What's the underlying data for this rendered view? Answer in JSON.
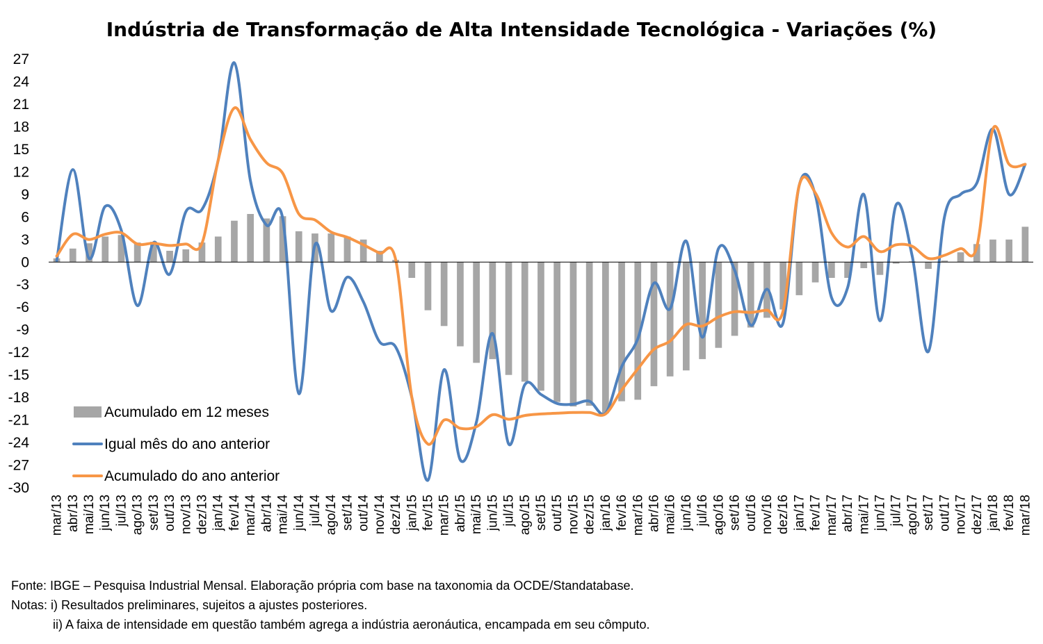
{
  "chart_data": {
    "type": "bar+line",
    "title": "Indústria de Transformação de Alta Intensidade Tecnológica - Variações (%)",
    "xlabel": "",
    "ylabel": "",
    "ylim": [
      -30,
      27
    ],
    "yticks": [
      27,
      24,
      21,
      18,
      15,
      12,
      9,
      6,
      3,
      0,
      -3,
      -6,
      -9,
      -12,
      -15,
      -18,
      -21,
      -24,
      -27,
      -30
    ],
    "legend_position": "bottom-left",
    "categories": [
      "mar/13",
      "abr/13",
      "mai/13",
      "jun/13",
      "jul/13",
      "ago/13",
      "set/13",
      "out/13",
      "nov/13",
      "dez/13",
      "jan/14",
      "fev/14",
      "mar/14",
      "abr/14",
      "mai/14",
      "jun/14",
      "jul/14",
      "ago/14",
      "set/14",
      "out/14",
      "nov/14",
      "dez/14",
      "jan/15",
      "fev/15",
      "mar/15",
      "abr/15",
      "mai/15",
      "jun/15",
      "jul/15",
      "ago/15",
      "set/15",
      "out/15",
      "nov/15",
      "dez/15",
      "jan/16",
      "fev/16",
      "mar/16",
      "abr/16",
      "mai/16",
      "jun/16",
      "jul/16",
      "ago/16",
      "set/16",
      "out/16",
      "nov/16",
      "dez/16",
      "jan/17",
      "fev/17",
      "mar/17",
      "abr/17",
      "mai/17",
      "jun/17",
      "jul/17",
      "ago/17",
      "set/17",
      "out/17",
      "nov/17",
      "dez/17",
      "jan/18",
      "fev/18",
      "mar/18"
    ],
    "series": [
      {
        "name": "Acumulado em 12 meses",
        "kind": "bar",
        "color": "#a6a6a6",
        "values": [
          0.5,
          1.8,
          2.5,
          3.4,
          3.6,
          2.6,
          2.7,
          1.5,
          1.7,
          2.6,
          3.4,
          5.5,
          6.4,
          5.8,
          6.1,
          4.1,
          3.8,
          3.8,
          3.4,
          3.0,
          1.5,
          0.3,
          -2.1,
          -6.4,
          -8.5,
          -11.2,
          -13.4,
          -12.9,
          -15.0,
          -15.9,
          -17.1,
          -18.6,
          -19.2,
          -19.1,
          -20.1,
          -18.5,
          -18.3,
          -16.5,
          -15.2,
          -14.4,
          -12.9,
          -11.4,
          -9.8,
          -8.7,
          -7.4,
          -6.3,
          -4.4,
          -2.7,
          -2.1,
          -2.1,
          -0.8,
          -1.7,
          -0.2,
          0.1,
          -0.9,
          0.2,
          1.3,
          2.4,
          3.0,
          3.0,
          4.7
        ]
      },
      {
        "name": "Igual mês do ano anterior",
        "kind": "line",
        "color": "#4f81bd",
        "values": [
          0.2,
          12.3,
          0.5,
          7.4,
          4.2,
          -5.8,
          2.6,
          -1.6,
          6.7,
          7.0,
          13.5,
          26.5,
          10.8,
          4.9,
          5.8,
          -17.5,
          2.3,
          -6.5,
          -2.0,
          -5.3,
          -10.6,
          -11.3,
          -18.0,
          -29.0,
          -14.3,
          -26.3,
          -21.3,
          -9.5,
          -24.2,
          -16.3,
          -17.6,
          -18.8,
          -18.9,
          -18.5,
          -20.1,
          -13.9,
          -10.2,
          -2.8,
          -6.2,
          2.8,
          -10.0,
          1.8,
          -1.1,
          -8.4,
          -3.6,
          -8.1,
          10.2,
          8.9,
          -4.7,
          -3.4,
          9.0,
          -7.8,
          7.6,
          0.8,
          -11.9,
          6.0,
          9.0,
          10.5,
          17.7,
          9.0,
          13.0
        ]
      },
      {
        "name": "Acumulado do ano anterior",
        "kind": "line",
        "color": "#f79646",
        "values": [
          0.8,
          3.7,
          3.0,
          3.7,
          3.9,
          2.4,
          2.5,
          2.2,
          2.4,
          2.5,
          13.5,
          20.5,
          16.3,
          13.2,
          11.8,
          6.4,
          5.6,
          4.0,
          3.3,
          2.3,
          1.2,
          0.3,
          -18.0,
          -24.2,
          -21.0,
          -22.1,
          -21.9,
          -20.3,
          -20.9,
          -20.4,
          -20.2,
          -20.1,
          -20.0,
          -20.0,
          -20.2,
          -17.0,
          -14.2,
          -11.6,
          -10.5,
          -8.3,
          -8.5,
          -7.3,
          -6.6,
          -6.7,
          -6.4,
          -6.5,
          10.2,
          9.2,
          3.9,
          2.0,
          3.4,
          1.4,
          2.3,
          2.1,
          0.5,
          0.9,
          1.8,
          2.0,
          17.7,
          13.0,
          13.0
        ]
      }
    ]
  },
  "notes": {
    "source": "Fonte: IBGE – Pesquisa Industrial Mensal. Elaboração própria com base na taxonomia da OCDE/Standatabase.",
    "note1": "Notas: i) Resultados preliminares, sujeitos a ajustes posteriores.",
    "note2": "ii) A faixa de intensidade em questão também agrega a indústria aeronáutica, encampada em seu cômputo."
  }
}
